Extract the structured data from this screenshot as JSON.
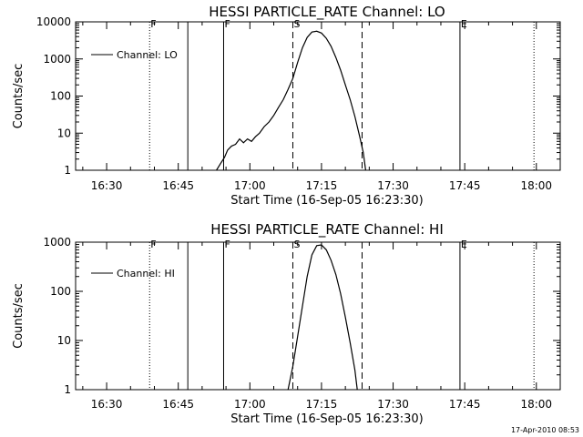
{
  "footer": {
    "timestamp": "17-Apr-2010 08:53"
  },
  "chart_data": [
    {
      "type": "line",
      "title": "HESSI PARTICLE_RATE Channel: LO",
      "xlabel": "Start Time (16-Sep-05 16:23:30)",
      "ylabel": "Counts/sec",
      "yscale": "log",
      "xlim": [
        "16:23:30",
        "18:05:00"
      ],
      "ylim": [
        1,
        10000
      ],
      "xticks": [
        "16:30",
        "16:45",
        "17:00",
        "17:15",
        "17:30",
        "17:45",
        "18:00"
      ],
      "yticks": [
        "1",
        "10",
        "100",
        "1000",
        "10000"
      ],
      "legend": {
        "label": "Channel: LO",
        "placement": "top-left"
      },
      "markers": [
        {
          "time": "16:39:00",
          "style": "dotted",
          "label": "F"
        },
        {
          "time": "16:47:00",
          "style": "solid",
          "label": ""
        },
        {
          "time": "16:54:30",
          "style": "solid",
          "label": "F"
        },
        {
          "time": "17:09:00",
          "style": "dashed",
          "label": "S"
        },
        {
          "time": "17:23:30",
          "style": "dashed",
          "label": ""
        },
        {
          "time": "17:44:00",
          "style": "solid",
          "label": "E"
        },
        {
          "time": "17:59:30",
          "style": "dotted",
          "label": ""
        }
      ],
      "series": [
        {
          "name": "Channel: LO",
          "x": [
            "16:53:00",
            "16:53:50",
            "16:54:40",
            "16:55:20",
            "16:56:10",
            "16:57:00",
            "16:57:50",
            "16:58:40",
            "16:59:30",
            "17:00:20",
            "17:01:10",
            "17:02:00",
            "17:03:00",
            "17:04:00",
            "17:05:00",
            "17:06:00",
            "17:07:00",
            "17:08:00",
            "17:09:00",
            "17:10:00",
            "17:11:00",
            "17:12:00",
            "17:13:00",
            "17:14:00",
            "17:15:00",
            "17:16:00",
            "17:17:00",
            "17:18:00",
            "17:19:00",
            "17:20:00",
            "17:21:00",
            "17:22:00",
            "17:23:00",
            "17:23:45",
            "17:24:15"
          ],
          "y": [
            1,
            1.5,
            2.2,
            3.5,
            4.5,
            5,
            7,
            5.5,
            7,
            6,
            8,
            10,
            15,
            20,
            30,
            50,
            80,
            150,
            300,
            800,
            2000,
            3800,
            5300,
            5600,
            5000,
            3600,
            2200,
            1100,
            500,
            200,
            80,
            28,
            8,
            3,
            1
          ]
        }
      ]
    },
    {
      "type": "line",
      "title": "HESSI PARTICLE_RATE Channel: HI",
      "xlabel": "Start Time (16-Sep-05 16:23:30)",
      "ylabel": "Counts/sec",
      "yscale": "log",
      "xlim": [
        "16:23:30",
        "18:05:00"
      ],
      "ylim": [
        1,
        1000
      ],
      "xticks": [
        "16:30",
        "16:45",
        "17:00",
        "17:15",
        "17:30",
        "17:45",
        "18:00"
      ],
      "yticks": [
        "1",
        "10",
        "100",
        "1000"
      ],
      "legend": {
        "label": "Channel: HI",
        "placement": "top-left"
      },
      "markers": [
        {
          "time": "16:39:00",
          "style": "dotted",
          "label": "F"
        },
        {
          "time": "16:47:00",
          "style": "solid",
          "label": ""
        },
        {
          "time": "16:54:30",
          "style": "solid",
          "label": "F"
        },
        {
          "time": "17:09:00",
          "style": "dashed",
          "label": "S"
        },
        {
          "time": "17:23:30",
          "style": "dashed",
          "label": ""
        },
        {
          "time": "17:44:00",
          "style": "solid",
          "label": "E"
        },
        {
          "time": "17:59:30",
          "style": "dotted",
          "label": ""
        }
      ],
      "series": [
        {
          "name": "Channel: HI",
          "x": [
            "17:08:00",
            "17:09:00",
            "17:10:00",
            "17:11:00",
            "17:12:00",
            "17:13:00",
            "17:14:00",
            "17:15:00",
            "17:16:00",
            "17:17:00",
            "17:18:00",
            "17:19:00",
            "17:20:00",
            "17:21:00",
            "17:22:00",
            "17:22:30"
          ],
          "y": [
            1,
            3,
            12,
            50,
            200,
            550,
            850,
            880,
            700,
            430,
            220,
            90,
            30,
            9,
            2.5,
            1
          ]
        }
      ]
    }
  ]
}
